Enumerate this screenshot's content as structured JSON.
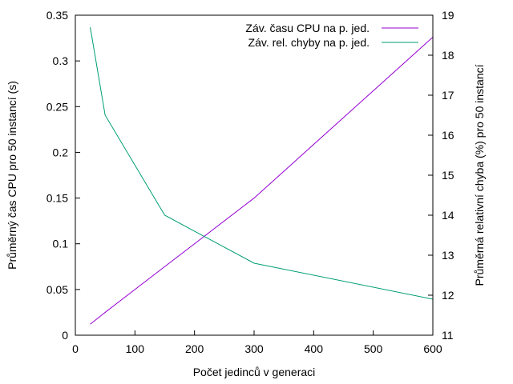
{
  "chart_data": {
    "type": "line",
    "title": "",
    "xlabel": "Počet jedinců v generaci",
    "ylabel": "Průměrný čas CPU pro 50 instancí (s)",
    "y2label": "Průměrná relativní chyba (%) pro 50 instancí",
    "xlim": [
      0,
      600
    ],
    "ylim": [
      0,
      0.35
    ],
    "y2lim": [
      11,
      19
    ],
    "xticks": [
      0,
      100,
      200,
      300,
      400,
      500,
      600
    ],
    "yticks": [
      0,
      0.05,
      0.1,
      0.15,
      0.2,
      0.25,
      0.3,
      0.35
    ],
    "y2ticks": [
      11,
      12,
      13,
      14,
      15,
      16,
      17,
      18,
      19
    ],
    "grid": false,
    "legend_position": "top-right",
    "series": [
      {
        "name": "Záv. času CPU na p. jed.",
        "color": "#9400d3",
        "axis": "left",
        "x": [
          25,
          50,
          150,
          300,
          600
        ],
        "y": [
          0.012,
          0.025,
          0.075,
          0.15,
          0.326
        ]
      },
      {
        "name": "Záv. rel. chyby na p. jed.",
        "color": "#009e73",
        "axis": "right",
        "x": [
          25,
          50,
          150,
          300,
          600
        ],
        "y": [
          18.7,
          16.5,
          14.0,
          12.8,
          11.9
        ]
      }
    ]
  }
}
